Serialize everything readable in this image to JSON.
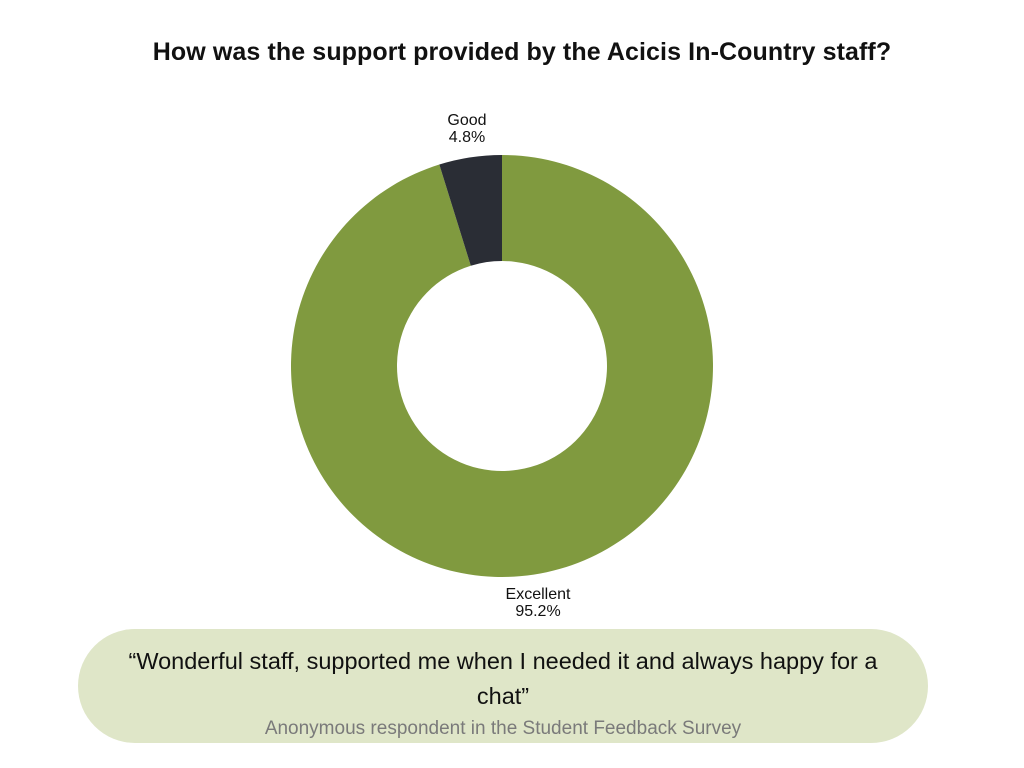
{
  "slide": {
    "title": "How was the support provided by the Acicis In-Country staff?"
  },
  "chart_data": {
    "type": "pie",
    "subtype": "donut",
    "slices": [
      {
        "label": "Excellent",
        "value": 95.2,
        "display": "95.2%",
        "color": "#809a3f"
      },
      {
        "label": "Good",
        "value": 4.8,
        "display": "4.8%",
        "color": "#2a2d35"
      }
    ]
  },
  "quote": {
    "text": "“Wonderful staff, supported me when I needed it and always happy for a chat”",
    "source": "Anonymous respondent in the Student Feedback Survey"
  }
}
